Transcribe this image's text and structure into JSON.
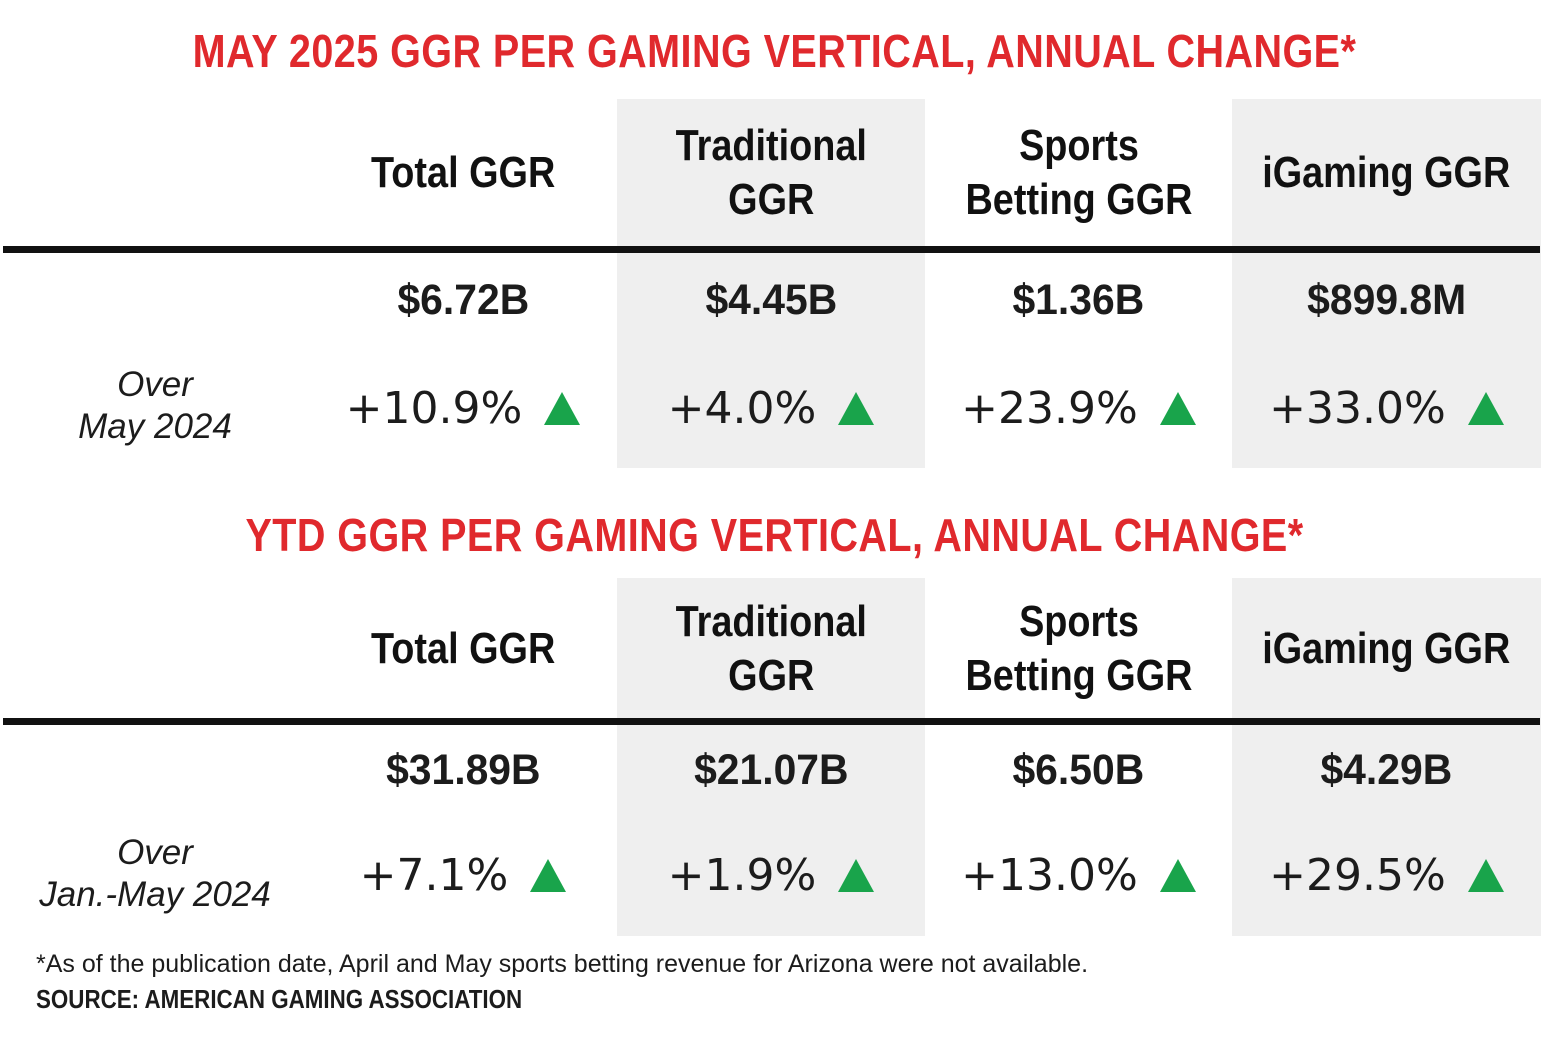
{
  "sections": [
    {
      "title": "MAY 2025 GGR PER GAMING VERTICAL, ANNUAL CHANGE*",
      "headers": [
        "Total GGR",
        "Traditional\nGGR",
        "Sports\nBetting GGR",
        "iGaming GGR"
      ],
      "amounts": [
        "$6.72B",
        "$4.45B",
        "$1.36B",
        "$899.8M"
      ],
      "row_label": "Over\nMay 2024",
      "changes": [
        "+10.9%",
        "+4.0%",
        "+23.9%",
        "+33.0%"
      ],
      "change_direction": [
        "up",
        "up",
        "up",
        "up"
      ]
    },
    {
      "title": "YTD GGR PER GAMING VERTICAL, ANNUAL CHANGE*",
      "headers": [
        "Total GGR",
        "Traditional\nGGR",
        "Sports\nBetting GGR",
        "iGaming GGR"
      ],
      "amounts": [
        "$31.89B",
        "$21.07B",
        "$6.50B",
        "$4.29B"
      ],
      "row_label": "Over\nJan.-May 2024",
      "changes": [
        "+7.1%",
        "+1.9%",
        "+13.0%",
        "+29.5%"
      ],
      "change_direction": [
        "up",
        "up",
        "up",
        "up"
      ]
    }
  ],
  "footnote": "*As of the publication date, April and May sports betting revenue for Arizona were not available.",
  "source": "SOURCE: AMERICAN GAMING ASSOCIATION",
  "colors": {
    "title": "#e0292d",
    "shade": "#efefef",
    "up_arrow": "#19a44b",
    "text": "#1c1c1c"
  },
  "icons": {
    "up": "triangle-up-icon"
  }
}
